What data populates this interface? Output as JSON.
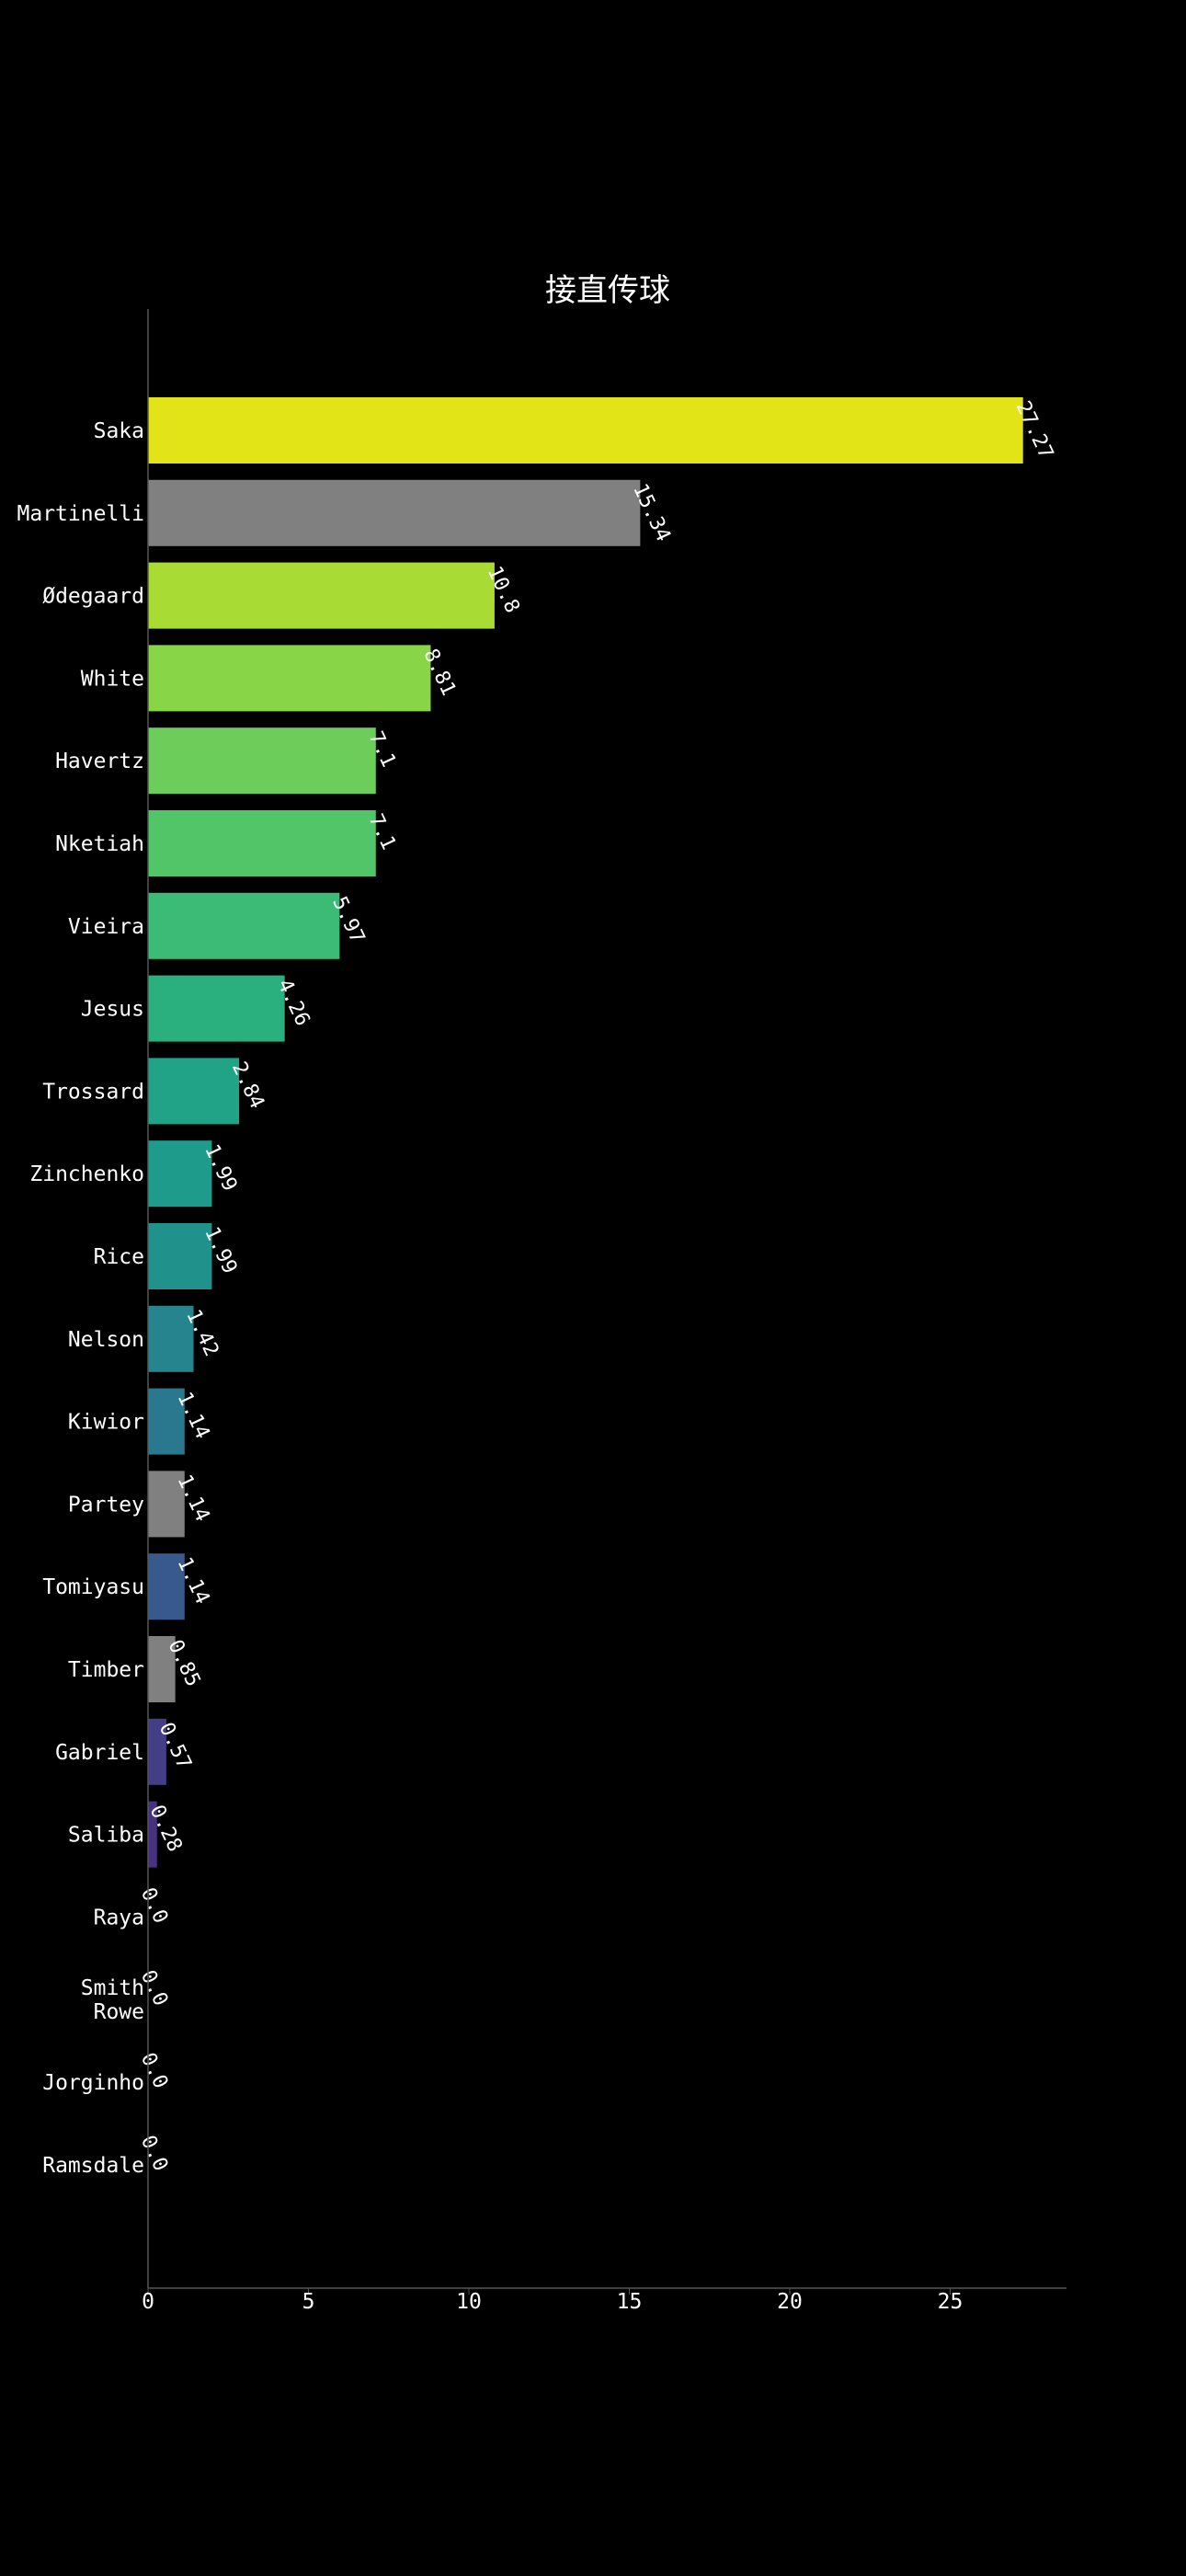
{
  "chart_data": {
    "type": "bar",
    "orientation": "horizontal",
    "title": "接直传球",
    "xlabel": "",
    "ylabel": "",
    "xlim": [
      0,
      28.6
    ],
    "xticks": [
      0,
      5,
      10,
      15,
      20,
      25
    ],
    "grid": false,
    "background": "#000000",
    "categories": [
      "Saka",
      "Martinelli",
      "Ødegaard",
      "White",
      "Havertz",
      "Nketiah",
      "Vieira",
      "Jesus",
      "Trossard",
      "Zinchenko",
      "Rice",
      "Nelson",
      "Kiwior",
      "Partey",
      "Tomiyasu",
      "Timber",
      "Gabriel",
      "Saliba",
      "Raya",
      "Smith Rowe",
      "Jorginho",
      "Ramsdale"
    ],
    "values": [
      27.27,
      15.34,
      10.8,
      8.81,
      7.1,
      7.1,
      5.97,
      4.26,
      2.84,
      1.99,
      1.99,
      1.42,
      1.14,
      1.14,
      1.14,
      0.85,
      0.57,
      0.28,
      0.0,
      0.0,
      0.0,
      0.0
    ],
    "value_labels": [
      "27.27",
      "15.34",
      "10.8",
      "8.81",
      "7.1",
      "7.1",
      "5.97",
      "4.26",
      "2.84",
      "1.99",
      "1.99",
      "1.42",
      "1.14",
      "1.14",
      "1.14",
      "0.85",
      "0.57",
      "0.28",
      "0.0",
      "0.0",
      "0.0",
      "0.0"
    ],
    "colors": [
      "#e3e418",
      "#808080",
      "#a8db34",
      "#88d548",
      "#6ccd5a",
      "#52c569",
      "#3bbb75",
      "#2ab07f",
      "#20a386",
      "#1e9b8a",
      "#21918c",
      "#25848e",
      "#2a788e",
      "#808080",
      "#38598c",
      "#808080",
      "#433e85",
      "#46327e",
      "#482878",
      "#481f70",
      "#481467",
      "#472d7b"
    ]
  }
}
